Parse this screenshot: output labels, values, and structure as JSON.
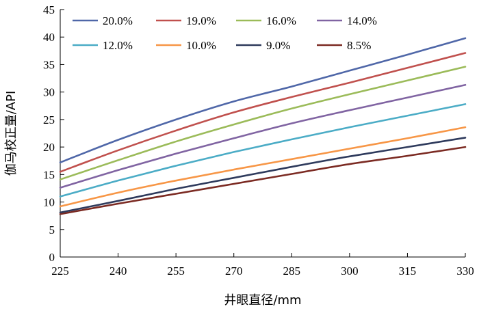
{
  "chart_data": {
    "type": "line",
    "xlabel": "井眼直径/mm",
    "ylabel": "伽马校正量/API",
    "xlim": [
      225,
      330
    ],
    "ylim": [
      0,
      45
    ],
    "xticks": [
      225,
      240,
      255,
      270,
      285,
      300,
      315,
      330
    ],
    "yticks": [
      0,
      5,
      10,
      15,
      20,
      25,
      30,
      35,
      40,
      45
    ],
    "grid": false,
    "legend_position": "top-left",
    "x": [
      225,
      240,
      255,
      270,
      285,
      300,
      315,
      330
    ],
    "series": [
      {
        "name": "20.0%",
        "color": "#4f67a8",
        "values": [
          17.2,
          21.3,
          25.0,
          28.3,
          31.0,
          33.9,
          36.8,
          39.8
        ]
      },
      {
        "name": "19.0%",
        "color": "#c0504d",
        "values": [
          15.5,
          19.4,
          23.0,
          26.3,
          29.1,
          31.7,
          34.4,
          37.1
        ]
      },
      {
        "name": "16.0%",
        "color": "#9bbb59",
        "values": [
          14.1,
          17.6,
          21.0,
          24.1,
          27.0,
          29.6,
          32.1,
          34.6
        ]
      },
      {
        "name": "14.0%",
        "color": "#8064a2",
        "values": [
          12.6,
          15.8,
          18.8,
          21.6,
          24.3,
          26.7,
          29.0,
          31.3
        ]
      },
      {
        "name": "12.0%",
        "color": "#4bacc6",
        "values": [
          11.0,
          13.9,
          16.6,
          19.1,
          21.4,
          23.6,
          25.7,
          27.8
        ]
      },
      {
        "name": "10.0%",
        "color": "#f79646",
        "values": [
          9.2,
          11.7,
          13.9,
          15.9,
          17.8,
          19.7,
          21.6,
          23.6
        ]
      },
      {
        "name": "9.0%",
        "color": "#2e3a5c",
        "values": [
          8.1,
          10.2,
          12.4,
          14.4,
          16.4,
          18.3,
          20.0,
          21.7
        ]
      },
      {
        "name": "8.5%",
        "color": "#7b2a22",
        "values": [
          7.8,
          9.7,
          11.5,
          13.3,
          15.1,
          16.9,
          18.4,
          20.0
        ]
      }
    ]
  }
}
